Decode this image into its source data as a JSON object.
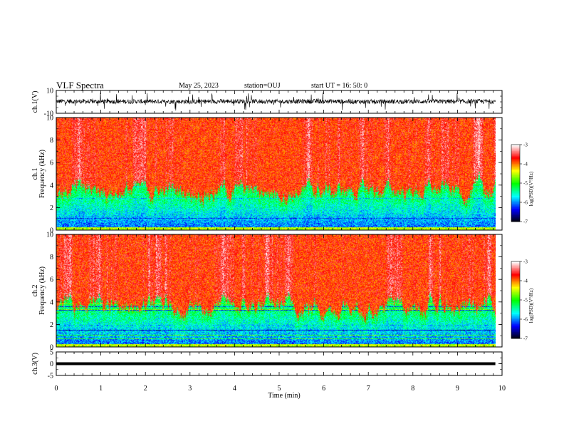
{
  "header": {
    "title": "VLF Spectra",
    "date": "May 25, 2023",
    "station": "station=OUJ",
    "start": "start  UT =   16: 50: 0"
  },
  "chart_data": [
    {
      "type": "line",
      "panel": "ch1-waveform",
      "ylabel": "ch.1(V)",
      "ylim": [
        -10,
        10
      ],
      "y_ticks": [
        "10",
        "-10"
      ],
      "x": [
        0,
        1,
        2,
        3,
        4,
        5,
        6,
        7,
        8,
        9,
        9.85
      ],
      "series": [
        {
          "values": [
            0.5,
            0.3,
            0.4,
            0.2,
            0.6,
            0.3,
            0.5,
            0.2,
            0.4,
            0.3,
            0.4
          ]
        }
      ],
      "note_style": "dense black noise trace roughly centered at 0 V with spikes"
    },
    {
      "type": "heatmap",
      "panel": "ch1-spectrogram",
      "ylabel": "ch.1\nFrequency  (kHz)",
      "ylim": [
        0,
        10
      ],
      "y_ticks": [
        "0",
        "2",
        "4",
        "6",
        "8",
        "10"
      ],
      "xlim": [
        0,
        9.85
      ],
      "band_kHz": [
        0.3,
        3.5
      ],
      "colorbar": {
        "label": "log(PSD)(V²/Hz)",
        "ticks": [
          "-3",
          "-4",
          "-5",
          "-6",
          "-7"
        ],
        "range": [
          -7,
          -3
        ]
      }
    },
    {
      "type": "heatmap",
      "panel": "ch2-spectrogram",
      "ylabel": "ch.2\nFrequency  (kHz)",
      "ylim": [
        0,
        10
      ],
      "y_ticks": [
        "0",
        "2",
        "4",
        "6",
        "8",
        "10"
      ],
      "xlim": [
        0,
        9.85
      ],
      "band_kHz": [
        0.3,
        3.6
      ],
      "colorbar": {
        "label": "log(PSD)(V²/Hz)",
        "ticks": [
          "-3",
          "-4",
          "-5",
          "-6",
          "-7"
        ],
        "range": [
          -7,
          -3
        ]
      }
    },
    {
      "type": "line",
      "panel": "ch3-waveform",
      "ylabel": "ch.3(V)",
      "ylim": [
        -5,
        5
      ],
      "y_ticks": [
        "5",
        "0",
        "-5"
      ],
      "x": [
        0,
        9.85
      ],
      "series": [
        {
          "values": [
            0,
            0
          ]
        }
      ]
    }
  ],
  "x_axis": {
    "label": "Time  (min)",
    "ticks": [
      "0",
      "1",
      "2",
      "3",
      "4",
      "5",
      "6",
      "7",
      "8",
      "9",
      "10"
    ],
    "range": [
      0,
      10
    ]
  },
  "colors": {
    "axis": "#000000",
    "trace": "#000000",
    "colormap": [
      "#000000",
      "#0000ff",
      "#00ffff",
      "#00ff00",
      "#ffff00",
      "#ff0000",
      "#ffffff"
    ]
  }
}
